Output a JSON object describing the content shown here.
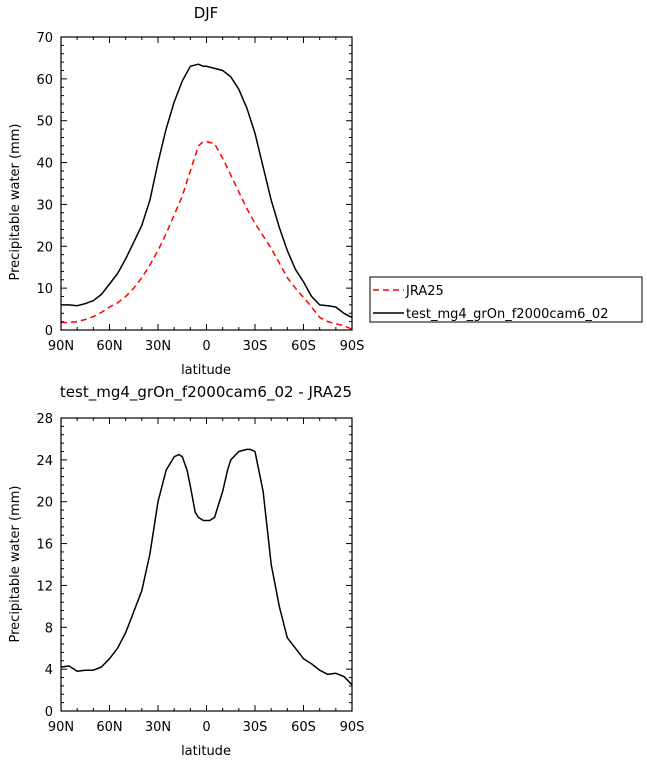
{
  "chart_data": [
    {
      "type": "line",
      "title": "DJF",
      "xlabel": "latitude",
      "ylabel": "Precipitable water (mm)",
      "xlim": [
        90,
        -90
      ],
      "ylim": [
        0,
        70
      ],
      "xticks": [
        90,
        60,
        30,
        0,
        -30,
        -60,
        -90
      ],
      "xtick_labels": [
        "90N",
        "60N",
        "30N",
        "0",
        "30S",
        "60S",
        "90S"
      ],
      "yticks": [
        0,
        10,
        20,
        30,
        40,
        50,
        60,
        70
      ],
      "ytick_labels": [
        "0",
        "10",
        "20",
        "30",
        "40",
        "50",
        "60",
        "70"
      ],
      "grid": false,
      "legend_position": "right",
      "series": [
        {
          "name": "JRA25",
          "color": "#ff0000",
          "dash": "dashed",
          "x": [
            90,
            85,
            80,
            75,
            70,
            65,
            60,
            55,
            50,
            45,
            40,
            35,
            30,
            25,
            20,
            15,
            10,
            5,
            2,
            0,
            -5,
            -10,
            -15,
            -20,
            -25,
            -30,
            -35,
            -40,
            -45,
            -50,
            -55,
            -60,
            -65,
            -70,
            -75,
            -80,
            -85,
            -90
          ],
          "y": [
            1.8,
            1.8,
            2.0,
            2.5,
            3.2,
            4.2,
            5.5,
            6.5,
            8.0,
            10.0,
            12.5,
            15.5,
            19.0,
            23.0,
            27.5,
            32.0,
            38.0,
            44.0,
            45.0,
            45.0,
            44.5,
            41.0,
            37.0,
            33.0,
            29.0,
            25.5,
            22.5,
            19.5,
            16.0,
            12.5,
            10.0,
            7.8,
            5.5,
            3.0,
            2.0,
            1.5,
            1.0,
            0.2
          ]
        },
        {
          "name": "test_mg4_grOn_f2000cam6_02",
          "color": "#000000",
          "dash": "solid",
          "x": [
            90,
            85,
            80,
            75,
            70,
            65,
            60,
            55,
            50,
            45,
            40,
            35,
            30,
            25,
            20,
            15,
            10,
            5,
            2,
            0,
            -5,
            -10,
            -15,
            -20,
            -25,
            -30,
            -35,
            -40,
            -45,
            -50,
            -55,
            -60,
            -65,
            -70,
            -75,
            -80,
            -85,
            -90
          ],
          "y": [
            6.0,
            6.0,
            5.8,
            6.3,
            7.0,
            8.5,
            11.0,
            13.5,
            17.0,
            21.0,
            25.0,
            31.0,
            40.0,
            48.0,
            54.5,
            59.5,
            63.0,
            63.5,
            63.0,
            63.0,
            62.5,
            62.0,
            60.5,
            57.5,
            53.0,
            47.0,
            39.0,
            31.0,
            24.5,
            19.0,
            14.5,
            11.5,
            8.0,
            6.0,
            5.8,
            5.5,
            4.0,
            3.0
          ]
        }
      ]
    },
    {
      "type": "line",
      "title": "test_mg4_grOn_f2000cam6_02 - JRA25",
      "xlabel": "latitude",
      "ylabel": "Precipitable water (mm)",
      "xlim": [
        90,
        -90
      ],
      "ylim": [
        0,
        28
      ],
      "xticks": [
        90,
        60,
        30,
        0,
        -30,
        -60,
        -90
      ],
      "xtick_labels": [
        "90N",
        "60N",
        "30N",
        "0",
        "30S",
        "60S",
        "90S"
      ],
      "yticks": [
        0,
        4,
        8,
        12,
        16,
        20,
        24,
        28
      ],
      "ytick_labels": [
        "0",
        "4",
        "8",
        "12",
        "16",
        "20",
        "24",
        "28"
      ],
      "grid": false,
      "series": [
        {
          "color": "#000000",
          "dash": "solid",
          "x": [
            90,
            85,
            80,
            75,
            70,
            65,
            60,
            55,
            50,
            45,
            40,
            35,
            30,
            25,
            20,
            17,
            15,
            12,
            10,
            7,
            5,
            2,
            0,
            -2,
            -5,
            -7,
            -10,
            -13,
            -15,
            -20,
            -25,
            -27,
            -30,
            -35,
            -40,
            -45,
            -50,
            -55,
            -60,
            -65,
            -70,
            -75,
            -80,
            -85,
            -90
          ],
          "y": [
            4.2,
            4.3,
            3.8,
            3.9,
            3.9,
            4.2,
            5.0,
            6.0,
            7.5,
            9.5,
            11.5,
            15.0,
            20.0,
            23.0,
            24.3,
            24.5,
            24.3,
            23.0,
            21.5,
            19.0,
            18.5,
            18.2,
            18.2,
            18.2,
            18.5,
            19.5,
            21.0,
            23.0,
            24.0,
            24.8,
            25.0,
            25.0,
            24.8,
            21.0,
            14.0,
            10.0,
            7.0,
            6.0,
            5.0,
            4.5,
            3.9,
            3.5,
            3.6,
            3.3,
            2.5
          ]
        }
      ]
    }
  ]
}
